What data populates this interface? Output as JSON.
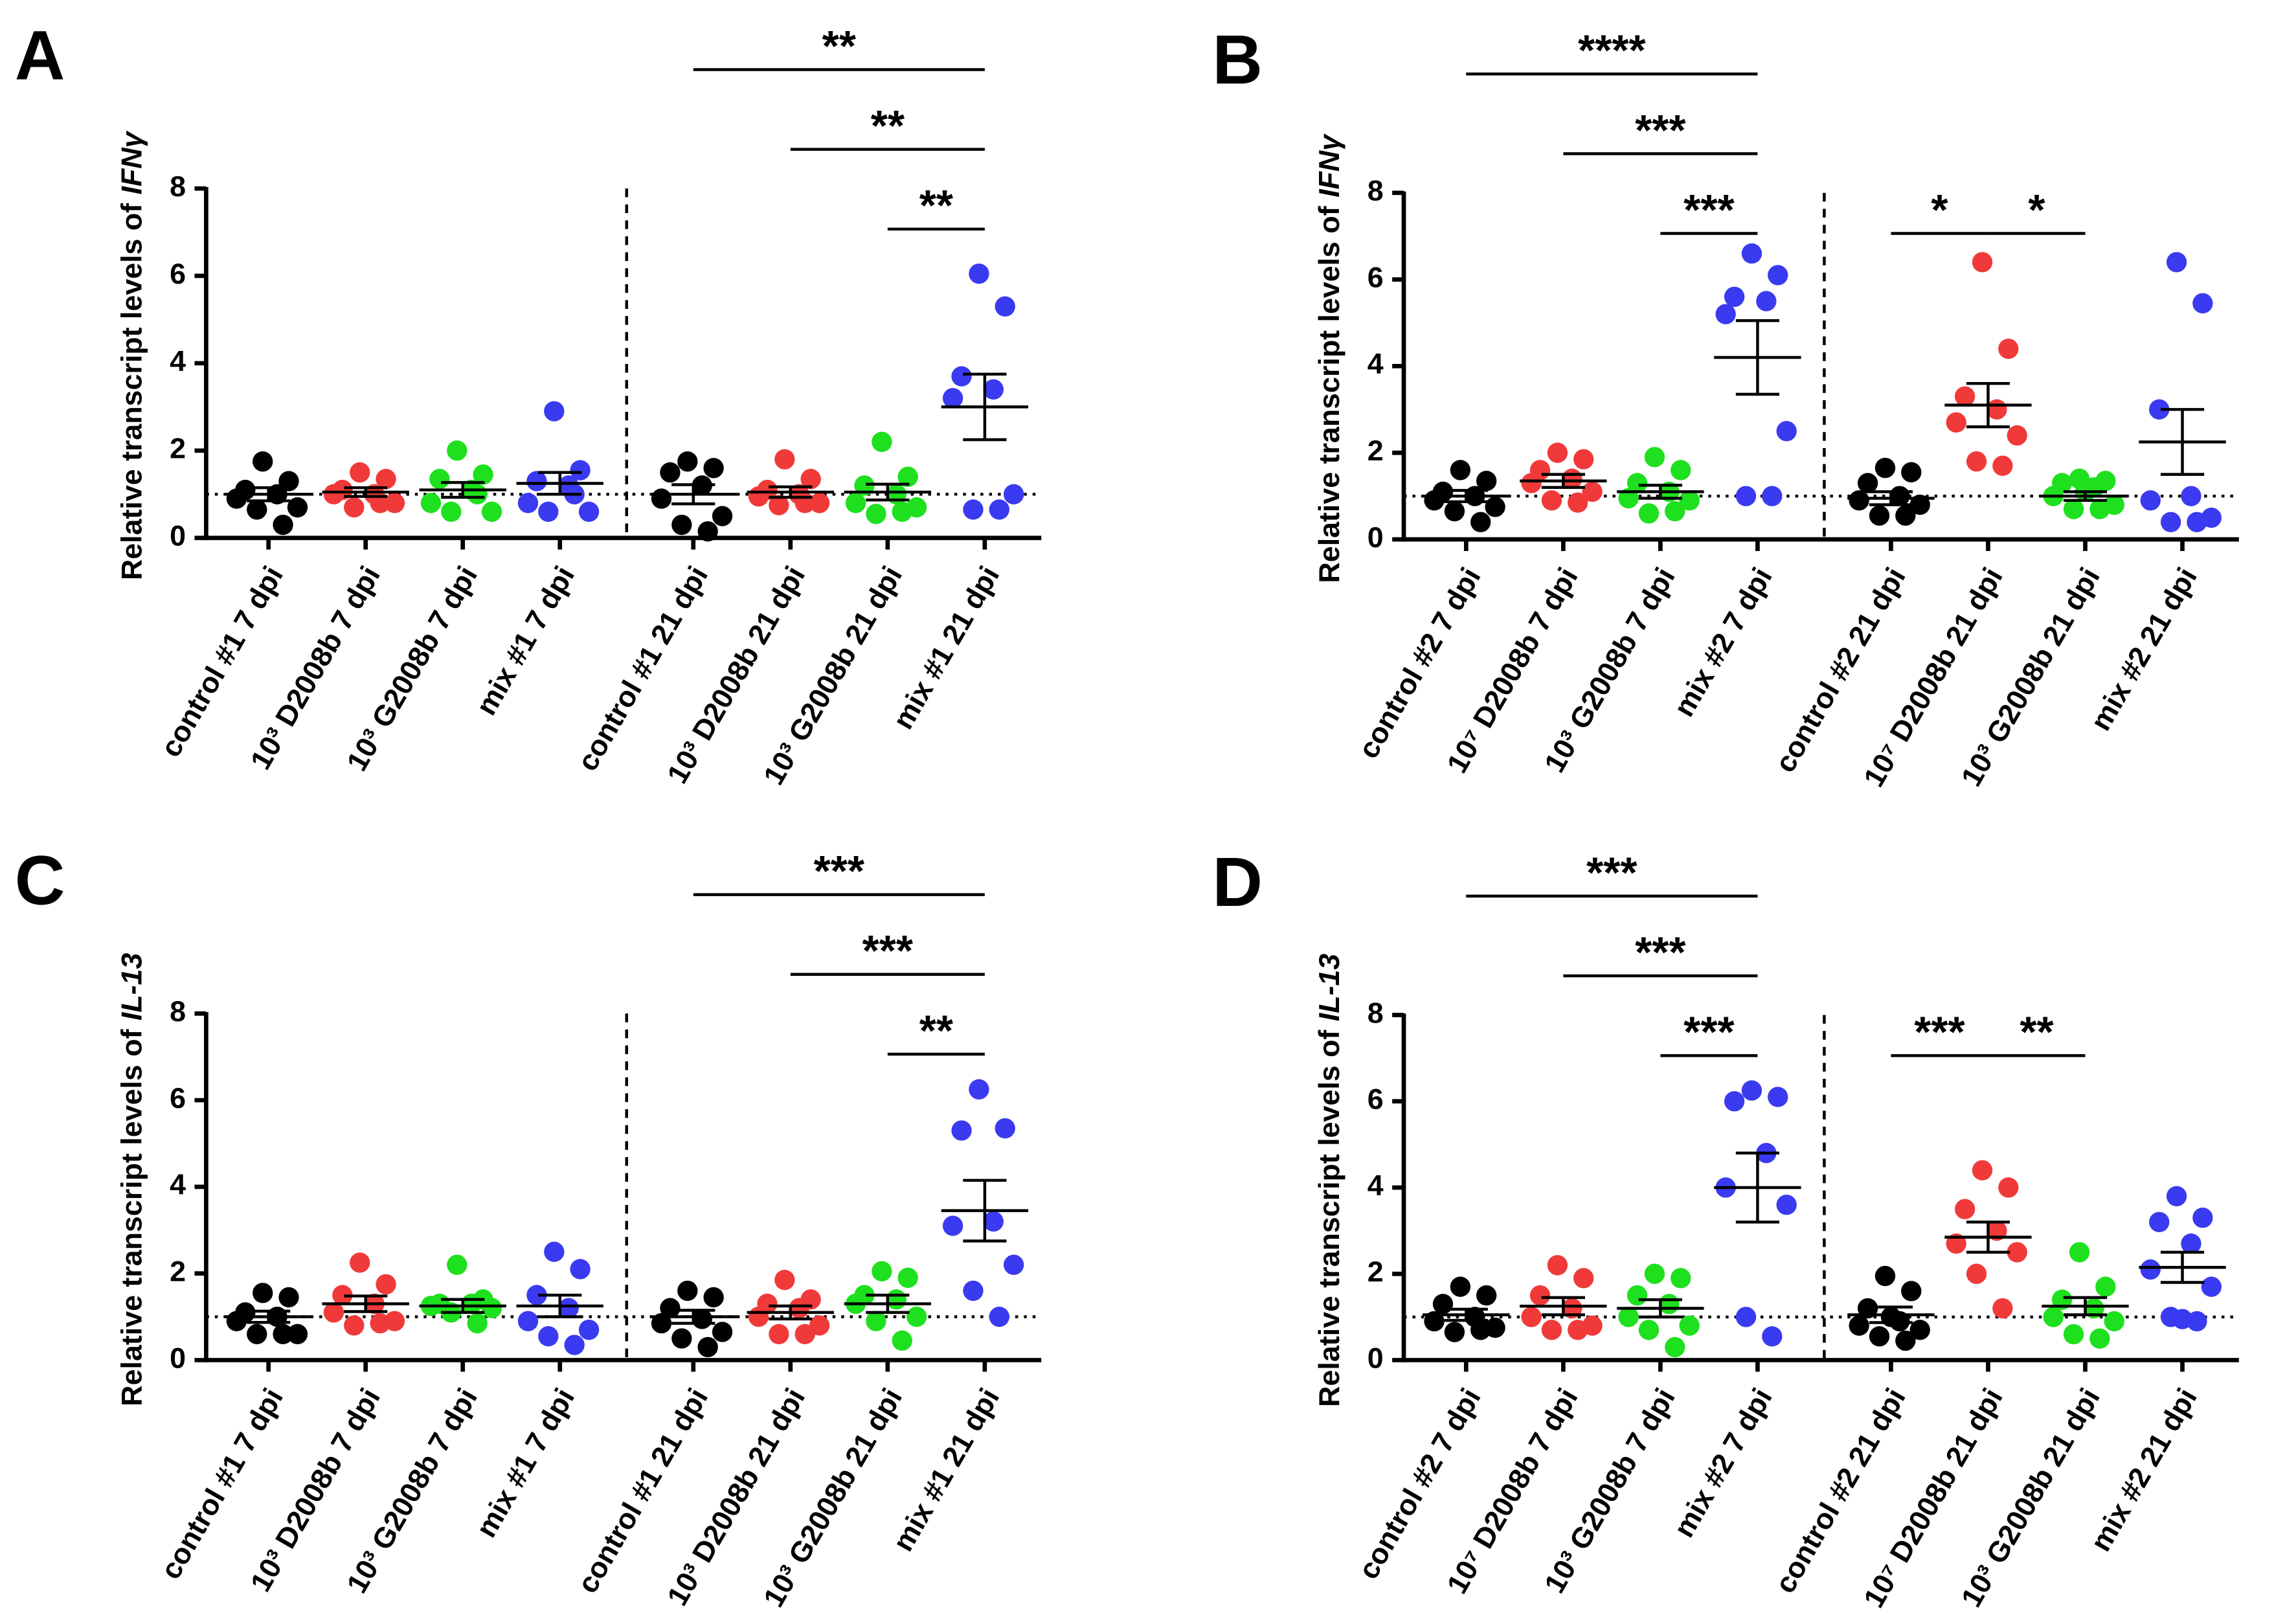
{
  "chart_data": [
    {
      "type": "dotplot",
      "panel": "A",
      "ylabel": "Relative transcript levels of",
      "ylabel_gene": "IFNγ",
      "ylim": [
        0,
        8
      ],
      "yticks": [
        0,
        2,
        4,
        6,
        8
      ],
      "reference_line": 1,
      "categories": [
        "control #1 7 dpi",
        "10³ D2008b 7 dpi",
        "10³ G2008b 7 dpi",
        "mix #1 7 dpi",
        "control #1 21 dpi",
        "10³ D2008b 21 dpi",
        "10³ G2008b 21 dpi",
        "mix #1 21 dpi"
      ],
      "colors": [
        "#000000",
        "#f03a3a",
        "#1ee01e",
        "#3a3af0",
        "#000000",
        "#f03a3a",
        "#1ee01e",
        "#3a3af0"
      ],
      "points": [
        [
          1.75,
          1.3,
          1.1,
          1.0,
          0.9,
          0.7,
          0.65,
          0.3
        ],
        [
          1.5,
          1.35,
          1.1,
          1.0,
          1.0,
          0.8,
          0.7,
          0.8
        ],
        [
          2.0,
          1.45,
          1.35,
          1.1,
          0.8,
          0.6,
          0.6,
          1.0
        ],
        [
          2.9,
          1.55,
          1.3,
          1.2,
          0.8,
          0.6,
          0.6,
          1.0
        ],
        [
          1.75,
          1.6,
          1.5,
          1.2,
          0.9,
          0.5,
          0.3,
          0.15
        ],
        [
          1.8,
          1.35,
          1.1,
          1.0,
          0.95,
          0.8,
          0.75,
          0.8
        ],
        [
          2.2,
          1.4,
          1.2,
          1.0,
          0.8,
          0.7,
          0.55,
          0.6
        ],
        [
          6.05,
          5.3,
          3.7,
          3.4,
          3.2,
          1.0,
          0.65,
          0.65
        ]
      ],
      "means": [
        1.0,
        1.05,
        1.1,
        1.25,
        1.0,
        1.05,
        1.05,
        3.0
      ],
      "sems": [
        0.15,
        0.1,
        0.17,
        0.25,
        0.22,
        0.12,
        0.18,
        0.75
      ],
      "comparisons": [
        {
          "between": [
            4,
            7
          ],
          "label": "**"
        },
        {
          "between": [
            5,
            7
          ],
          "label": "**"
        },
        {
          "between": [
            6,
            7
          ],
          "label": "**"
        }
      ]
    },
    {
      "type": "dotplot",
      "panel": "B",
      "ylabel": "Relative transcript levels of",
      "ylabel_gene": "IFNγ",
      "ylim": [
        0,
        8
      ],
      "yticks": [
        0,
        2,
        4,
        6,
        8
      ],
      "reference_line": 1,
      "categories": [
        "control #2 7 dpi",
        "10⁷ D2008b 7 dpi",
        "10³ G2008b 7 dpi",
        "mix #2 7 dpi",
        "control #2 21 dpi",
        "10⁷ D2008b 21 dpi",
        "10³ G2008b 21 dpi",
        "mix #2 21 dpi"
      ],
      "colors": [
        "#000000",
        "#f03a3a",
        "#1ee01e",
        "#3a3af0",
        "#000000",
        "#f03a3a",
        "#1ee01e",
        "#3a3af0"
      ],
      "points": [
        [
          1.6,
          1.35,
          1.1,
          1.0,
          0.9,
          0.75,
          0.65,
          0.4
        ],
        [
          2.0,
          1.85,
          1.6,
          1.4,
          1.3,
          1.1,
          0.9,
          0.85
        ],
        [
          1.9,
          1.6,
          1.3,
          1.1,
          0.95,
          0.9,
          0.6,
          0.65
        ],
        [
          6.6,
          6.1,
          5.6,
          5.5,
          5.2,
          2.5,
          1.0,
          1.0
        ],
        [
          1.65,
          1.55,
          1.3,
          1.0,
          0.9,
          0.8,
          0.55,
          0.55
        ],
        [
          6.4,
          4.4,
          3.3,
          3.0,
          2.7,
          2.4,
          1.8,
          1.7
        ],
        [
          1.4,
          1.35,
          1.3,
          1.2,
          1.0,
          0.8,
          0.7,
          0.7,
          1.1
        ],
        [
          6.4,
          5.45,
          3.0,
          1.0,
          0.9,
          0.5,
          0.4,
          0.4
        ]
      ],
      "means": [
        1.0,
        1.35,
        1.1,
        4.2,
        0.95,
        3.1,
        1.0,
        2.25
      ],
      "sems": [
        0.13,
        0.15,
        0.15,
        0.85,
        0.15,
        0.5,
        0.1,
        0.75
      ],
      "comparisons": [
        {
          "between": [
            0,
            3
          ],
          "label": "****"
        },
        {
          "between": [
            1,
            3
          ],
          "label": "***"
        },
        {
          "between": [
            2,
            3
          ],
          "label": "***"
        },
        {
          "between": [
            4,
            5
          ],
          "label": "*"
        },
        {
          "between": [
            5,
            6
          ],
          "label": "*"
        }
      ]
    },
    {
      "type": "dotplot",
      "panel": "C",
      "ylabel": "Relative transcript levels of",
      "ylabel_gene": "IL-13",
      "ylim": [
        0,
        8
      ],
      "yticks": [
        0,
        2,
        4,
        6,
        8
      ],
      "reference_line": 1,
      "categories": [
        "control #1 7 dpi",
        "10³ D2008b 7 dpi",
        "10³ G2008b 7 dpi",
        "mix #1 7 dpi",
        "control #1 21 dpi",
        "10³ D2008b 21 dpi",
        "10³ G2008b 21 dpi",
        "mix #1 21 dpi"
      ],
      "colors": [
        "#000000",
        "#f03a3a",
        "#1ee01e",
        "#3a3af0",
        "#000000",
        "#f03a3a",
        "#1ee01e",
        "#3a3af0"
      ],
      "points": [
        [
          1.55,
          1.45,
          1.1,
          1.0,
          0.9,
          0.6,
          0.6,
          0.6
        ],
        [
          2.25,
          1.75,
          1.5,
          1.3,
          1.1,
          0.9,
          0.8,
          0.85
        ],
        [
          2.2,
          1.4,
          1.3,
          1.3,
          1.25,
          1.2,
          1.1,
          0.85
        ],
        [
          2.5,
          2.1,
          1.5,
          1.2,
          0.9,
          0.7,
          0.55,
          0.35
        ],
        [
          1.6,
          1.45,
          1.2,
          0.95,
          0.85,
          0.65,
          0.5,
          0.3
        ],
        [
          1.85,
          1.4,
          1.3,
          1.2,
          1.0,
          0.8,
          0.6,
          0.6
        ],
        [
          2.05,
          1.9,
          1.5,
          1.4,
          1.3,
          1.0,
          0.9,
          0.45
        ],
        [
          6.25,
          5.35,
          5.3,
          3.2,
          3.1,
          2.2,
          1.6,
          1.0
        ]
      ],
      "means": [
        1.0,
        1.3,
        1.25,
        1.25,
        1.0,
        1.1,
        1.3,
        3.45
      ],
      "sems": [
        0.13,
        0.18,
        0.15,
        0.25,
        0.15,
        0.15,
        0.2,
        0.7
      ],
      "comparisons": [
        {
          "between": [
            4,
            7
          ],
          "label": "***"
        },
        {
          "between": [
            5,
            7
          ],
          "label": "***"
        },
        {
          "between": [
            6,
            7
          ],
          "label": "**"
        }
      ]
    },
    {
      "type": "dotplot",
      "panel": "D",
      "ylabel": "Relative transcript levels of",
      "ylabel_gene": "IL-13",
      "ylim": [
        0,
        8
      ],
      "yticks": [
        0,
        2,
        4,
        6,
        8
      ],
      "reference_line": 1,
      "categories": [
        "control #2 7 dpi",
        "10⁷ D2008b 7 dpi",
        "10³ G2008b 7 dpi",
        "mix #2 7 dpi",
        "control #2 21 dpi",
        "10⁷ D2008b 21 dpi",
        "10³ G2008b 21 dpi",
        "mix #2 21 dpi"
      ],
      "colors": [
        "#000000",
        "#f03a3a",
        "#1ee01e",
        "#3a3af0",
        "#000000",
        "#f03a3a",
        "#1ee01e",
        "#3a3af0"
      ],
      "points": [
        [
          1.7,
          1.5,
          1.3,
          1.0,
          0.9,
          0.75,
          0.65,
          0.7
        ],
        [
          2.2,
          1.9,
          1.5,
          1.2,
          1.0,
          0.8,
          0.7,
          0.7
        ],
        [
          2.0,
          1.9,
          1.5,
          1.3,
          1.0,
          0.8,
          0.7,
          0.3
        ],
        [
          6.25,
          6.1,
          6.0,
          4.8,
          4.0,
          3.6,
          1.0,
          0.55
        ],
        [
          1.95,
          1.6,
          1.2,
          0.9,
          0.8,
          0.7,
          0.55,
          0.45,
          1.0
        ],
        [
          4.4,
          4.0,
          3.5,
          3.0,
          2.7,
          2.5,
          2.0,
          1.2
        ],
        [
          2.5,
          1.7,
          1.4,
          1.2,
          1.0,
          0.9,
          0.6,
          0.5
        ],
        [
          3.8,
          3.3,
          3.2,
          2.7,
          2.1,
          1.7,
          1.0,
          0.9,
          0.95
        ]
      ],
      "means": [
        1.05,
        1.25,
        1.2,
        4.0,
        1.05,
        2.85,
        1.25,
        2.15
      ],
      "sems": [
        0.13,
        0.2,
        0.2,
        0.8,
        0.18,
        0.35,
        0.2,
        0.35
      ],
      "comparisons": [
        {
          "between": [
            0,
            3
          ],
          "label": "***"
        },
        {
          "between": [
            1,
            3
          ],
          "label": "***"
        },
        {
          "between": [
            2,
            3
          ],
          "label": "***"
        },
        {
          "between": [
            4,
            5
          ],
          "label": "***"
        },
        {
          "between": [
            5,
            6
          ],
          "label": "**"
        }
      ]
    }
  ]
}
